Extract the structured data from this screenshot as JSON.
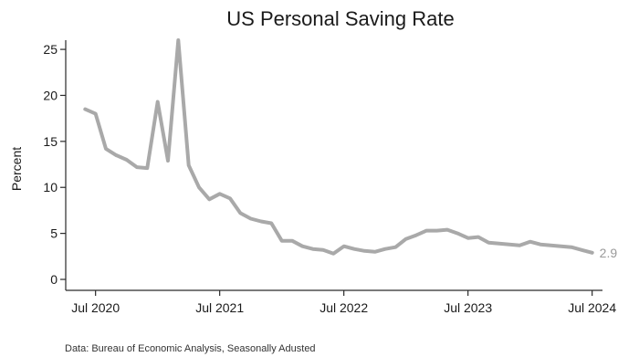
{
  "chart_data": {
    "type": "line",
    "title": "US Personal Saving Rate",
    "xlabel": "",
    "ylabel": "Percent",
    "ylim": [
      0,
      26
    ],
    "xlim": [
      "2020-05",
      "2024-08"
    ],
    "yticks": [
      0,
      5,
      10,
      15,
      20,
      25
    ],
    "xticks": [
      {
        "date": "2020-07",
        "label": "Jul 2020"
      },
      {
        "date": "2021-07",
        "label": "Jul 2021"
      },
      {
        "date": "2022-07",
        "label": "Jul 2022"
      },
      {
        "date": "2023-07",
        "label": "Jul 2023"
      },
      {
        "date": "2024-07",
        "label": "Jul 2024"
      }
    ],
    "grid": false,
    "legend": "none",
    "end_label": "2.9",
    "source": "Data: Bureau of Economic Analysis, Seasonally Adusted",
    "series": [
      {
        "color": "#a9a9a9",
        "x": [
          "2020-06",
          "2020-07",
          "2020-08",
          "2020-09",
          "2020-10",
          "2020-11",
          "2020-12",
          "2021-01",
          "2021-02",
          "2021-03",
          "2021-04",
          "2021-05",
          "2021-06",
          "2021-07",
          "2021-08",
          "2021-09",
          "2021-10",
          "2021-11",
          "2021-12",
          "2022-01",
          "2022-02",
          "2022-03",
          "2022-04",
          "2022-05",
          "2022-06",
          "2022-07",
          "2022-08",
          "2022-09",
          "2022-10",
          "2022-11",
          "2022-12",
          "2023-01",
          "2023-02",
          "2023-03",
          "2023-04",
          "2023-05",
          "2023-06",
          "2023-07",
          "2023-08",
          "2023-09",
          "2023-10",
          "2023-11",
          "2023-12",
          "2024-01",
          "2024-02",
          "2024-03",
          "2024-04",
          "2024-05",
          "2024-06",
          "2024-07"
        ],
        "values": [
          18.5,
          18.0,
          14.2,
          13.5,
          13.0,
          12.2,
          12.1,
          19.3,
          12.9,
          26.0,
          12.4,
          10.0,
          8.7,
          9.3,
          8.8,
          7.2,
          6.6,
          6.3,
          6.1,
          4.2,
          4.2,
          3.6,
          3.3,
          3.2,
          2.8,
          3.6,
          3.3,
          3.1,
          3.0,
          3.3,
          3.5,
          4.4,
          4.8,
          5.3,
          5.3,
          5.4,
          5.0,
          4.5,
          4.6,
          4.0,
          3.9,
          3.8,
          3.7,
          4.1,
          3.8,
          3.7,
          3.6,
          3.5,
          3.2,
          2.9
        ]
      }
    ]
  }
}
